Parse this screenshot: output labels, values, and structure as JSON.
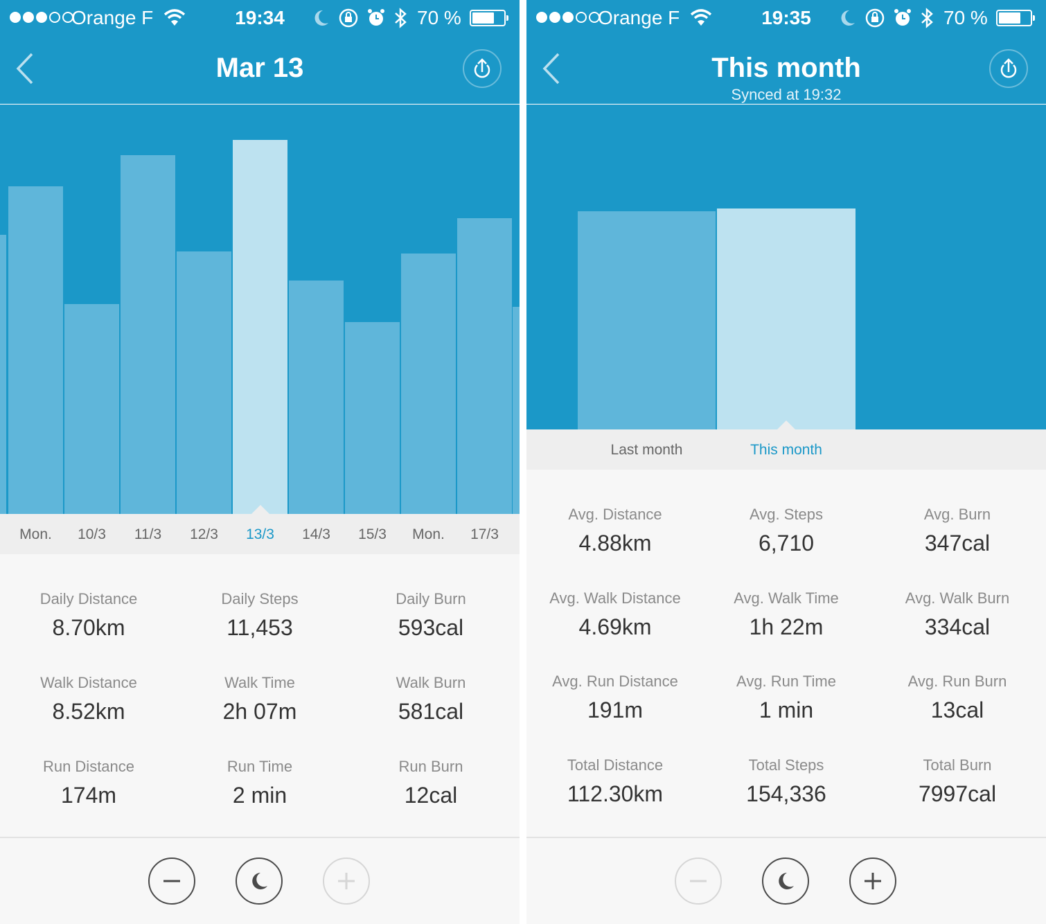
{
  "colors": {
    "primary": "#1b98c8",
    "bar": "#5fb6da",
    "bar_selected": "#bde2f0",
    "label_selected": "#1b98c8",
    "label": "#666666"
  },
  "screens": [
    {
      "status": {
        "carrier": "Orange F",
        "time": "19:34",
        "battery": "70 %"
      },
      "header": {
        "title": "Mar 13"
      },
      "chart_data": {
        "type": "bar",
        "categories": [
          "",
          "Mon.",
          "10/3",
          "11/3",
          "12/3",
          "13/3",
          "14/3",
          "15/3",
          "Mon.",
          "17/3",
          ""
        ],
        "values": [
          403,
          473,
          303,
          518,
          379,
          540,
          337,
          277,
          376,
          427,
          299
        ],
        "selected_index": 5,
        "ylim": [
          0,
          591
        ],
        "xlabel": "",
        "ylabel": ""
      },
      "stats": [
        {
          "label": "Daily Distance",
          "value": "8.70km"
        },
        {
          "label": "Daily Steps",
          "value": "11,453"
        },
        {
          "label": "Daily Burn",
          "value": "593cal"
        },
        {
          "label": "Walk Distance",
          "value": "8.52km"
        },
        {
          "label": "Walk Time",
          "value": "2h 07m"
        },
        {
          "label": "Walk Burn",
          "value": "581cal"
        },
        {
          "label": "Run Distance",
          "value": "174m"
        },
        {
          "label": "Run Time",
          "value": "2 min"
        },
        {
          "label": "Run Burn",
          "value": "12cal"
        }
      ],
      "bottom": {
        "minus_disabled": false,
        "plus_disabled": true
      }
    },
    {
      "status": {
        "carrier": "Orange F",
        "time": "19:35",
        "battery": "70 %"
      },
      "header": {
        "title": "This month",
        "subtitle": "Synced at 19:32"
      },
      "chart_data": {
        "type": "bar",
        "categories": [
          "Last month",
          "This month"
        ],
        "values": [
          315,
          319
        ],
        "selected_index": 1,
        "ylim": [
          0,
          469
        ],
        "xlabel": "",
        "ylabel": ""
      },
      "stats": [
        {
          "label": "Avg. Distance",
          "value": "4.88km"
        },
        {
          "label": "Avg. Steps",
          "value": "6,710"
        },
        {
          "label": "Avg. Burn",
          "value": "347cal"
        },
        {
          "label": "Avg. Walk Distance",
          "value": "4.69km"
        },
        {
          "label": "Avg. Walk Time",
          "value": "1h 22m"
        },
        {
          "label": "Avg. Walk Burn",
          "value": "334cal"
        },
        {
          "label": "Avg. Run Distance",
          "value": "191m"
        },
        {
          "label": "Avg. Run Time",
          "value": "1 min"
        },
        {
          "label": "Avg. Run Burn",
          "value": "13cal"
        },
        {
          "label": "Total Distance",
          "value": "112.30km"
        },
        {
          "label": "Total Steps",
          "value": "154,336"
        },
        {
          "label": "Total Burn",
          "value": "7997cal"
        }
      ],
      "bottom": {
        "minus_disabled": true,
        "plus_disabled": false
      }
    }
  ]
}
